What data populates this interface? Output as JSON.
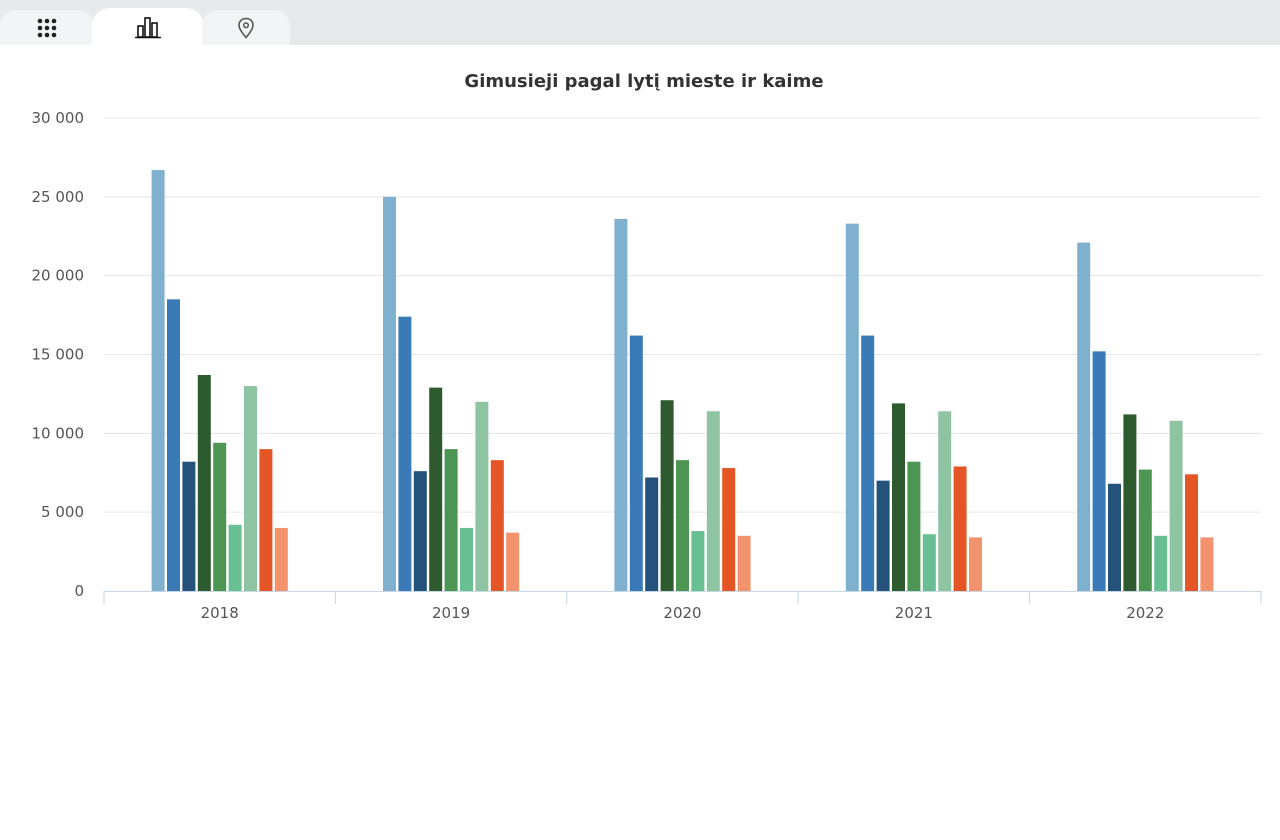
{
  "tabs": [
    {
      "icon": "grid-icon",
      "active": false
    },
    {
      "icon": "bar-chart-icon",
      "active": true
    },
    {
      "icon": "map-pin-icon",
      "active": false
    }
  ],
  "chart_data": {
    "type": "bar",
    "title": "Gimusieji pagal lytį mieste ir kaime",
    "xlabel": "",
    "ylabel": "",
    "ylim": [
      0,
      30000
    ],
    "yticks": [
      0,
      5000,
      10000,
      15000,
      20000,
      25000,
      30000
    ],
    "ytick_labels": [
      "0",
      "5 000",
      "10 000",
      "15 000",
      "20 000",
      "25 000",
      "30 000"
    ],
    "grid": true,
    "legend": "none",
    "categories": [
      "2018",
      "2019",
      "2020",
      "2021",
      "2022"
    ],
    "series": [
      {
        "color": "#7fb1cf",
        "values": [
          26700,
          25000,
          23600,
          23300,
          22100
        ]
      },
      {
        "color": "#3a7ab7",
        "values": [
          18500,
          17400,
          16200,
          16200,
          15200
        ]
      },
      {
        "color": "#24527a",
        "values": [
          8200,
          7600,
          7200,
          7000,
          6800
        ]
      },
      {
        "color": "#2e5a2f",
        "values": [
          13700,
          12900,
          12100,
          11900,
          11200
        ]
      },
      {
        "color": "#4c9552",
        "values": [
          9400,
          9000,
          8300,
          8200,
          7700
        ]
      },
      {
        "color": "#68bf91",
        "values": [
          4200,
          4000,
          3800,
          3600,
          3500
        ]
      },
      {
        "color": "#8fc4a3",
        "values": [
          13000,
          12000,
          11400,
          11400,
          10800
        ]
      },
      {
        "color": "#e55627",
        "values": [
          9000,
          8300,
          7800,
          7900,
          7400
        ]
      },
      {
        "color": "#f2936e",
        "values": [
          4000,
          3700,
          3500,
          3400,
          3400
        ]
      }
    ]
  }
}
